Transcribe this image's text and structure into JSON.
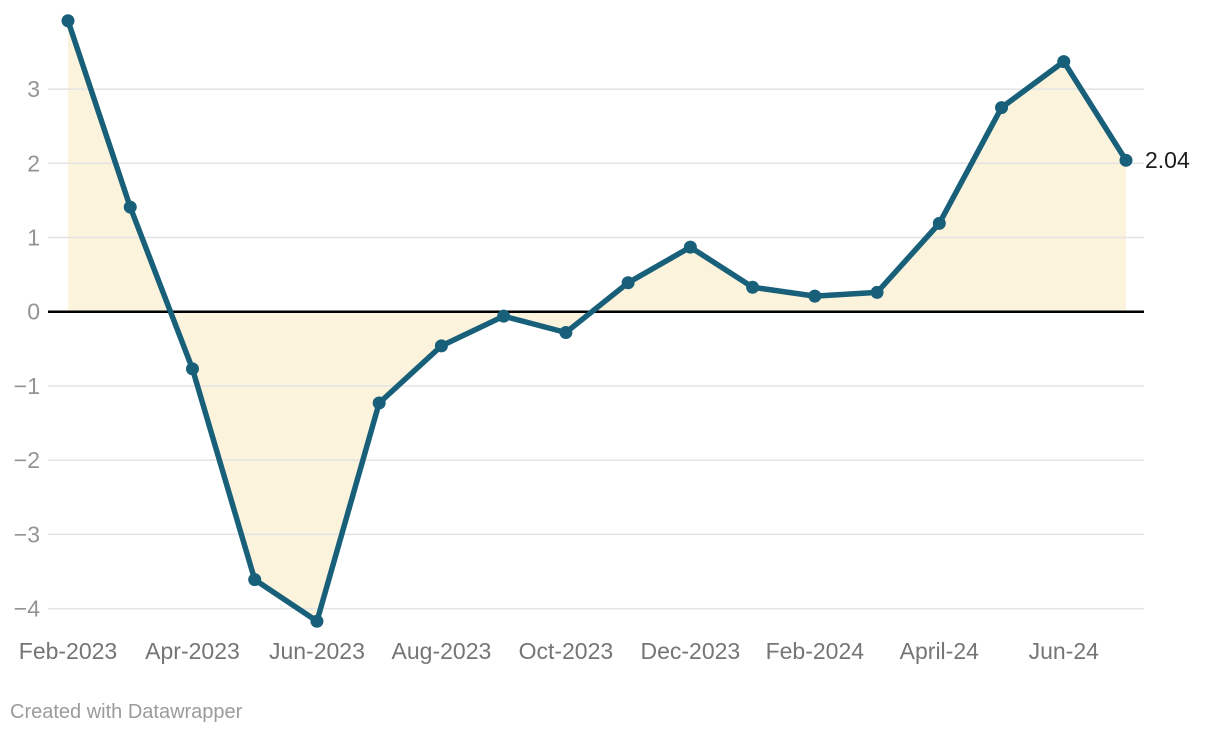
{
  "chart_data": {
    "type": "line",
    "title": "",
    "xlabel": "",
    "ylabel": "",
    "x": [
      "Feb-2023",
      "Mar-2023",
      "Apr-2023",
      "May-2023",
      "Jun-2023",
      "Jul-2023",
      "Aug-2023",
      "Sep-2023",
      "Oct-2023",
      "Nov-2023",
      "Dec-2023",
      "Jan-2024",
      "Feb-2024",
      "Mar-2024",
      "Apr-2024",
      "May-2024",
      "Jun-2024",
      "Jul-2024"
    ],
    "values": [
      3.92,
      1.41,
      -0.77,
      -3.61,
      -4.17,
      -1.23,
      -0.46,
      -0.06,
      -0.28,
      0.39,
      0.87,
      0.33,
      0.21,
      0.26,
      1.19,
      2.75,
      3.37,
      2.04
    ],
    "end_label": "2.04",
    "ylim": [
      -4.45,
      4.2
    ],
    "grid": true,
    "legend": "none",
    "area_fill_to_zero": true,
    "y_ticks": [
      {
        "value": 3,
        "label": "3"
      },
      {
        "value": 2,
        "label": "2"
      },
      {
        "value": 1,
        "label": "1"
      },
      {
        "value": 0,
        "label": "0"
      },
      {
        "value": -1,
        "label": "−1"
      },
      {
        "value": -2,
        "label": "−2"
      },
      {
        "value": -3,
        "label": "−3"
      },
      {
        "value": -4,
        "label": "−4"
      }
    ],
    "x_ticks": [
      {
        "index": 0,
        "label": "Feb-2023"
      },
      {
        "index": 2,
        "label": "Apr-2023"
      },
      {
        "index": 4,
        "label": "Jun-2023"
      },
      {
        "index": 6,
        "label": "Aug-2023"
      },
      {
        "index": 8,
        "label": "Oct-2023"
      },
      {
        "index": 10,
        "label": "Dec-2023"
      },
      {
        "index": 12,
        "label": "Feb-2024"
      },
      {
        "index": 14,
        "label": "April-24"
      },
      {
        "index": 16,
        "label": "Jun-24"
      }
    ],
    "colors": {
      "line": "#18607a",
      "fill": "#fcf3dc",
      "zero_line": "#000000",
      "grid": "#e3e3e3",
      "y_tick_text": "#949494",
      "x_tick_text": "#757575",
      "end_label_text": "#1d1d1d"
    }
  },
  "footer": {
    "attribution": "Created with Datawrapper"
  }
}
